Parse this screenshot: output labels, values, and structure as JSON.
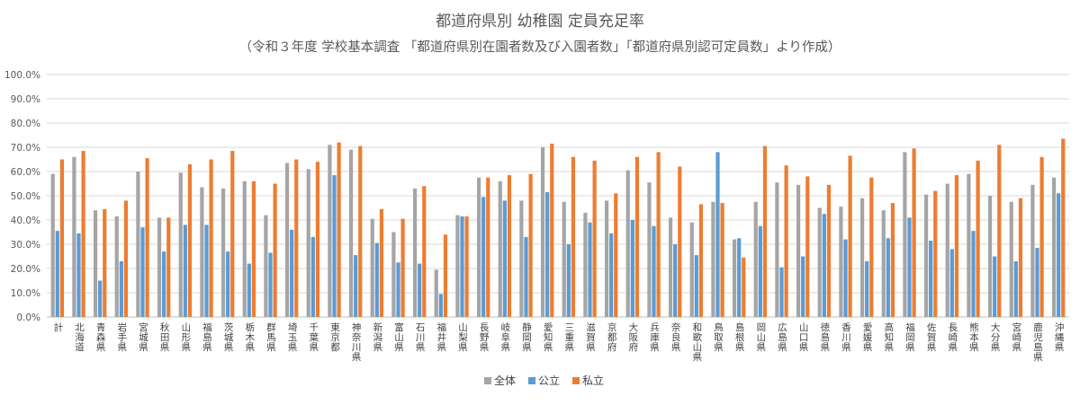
{
  "chart_data": {
    "type": "bar",
    "title": "都道府県別 幼稚園 定員充足率",
    "subtitle": "（令和３年度 学校基本調査 「都道府県別在園者数及び入園者数」「都道府県別認可定員数」より作成）",
    "xlabel": "",
    "ylabel": "",
    "ylim": [
      0,
      100
    ],
    "y_ticks": [
      "0.0%",
      "10.0%",
      "20.0%",
      "30.0%",
      "40.0%",
      "50.0%",
      "60.0%",
      "70.0%",
      "80.0%",
      "90.0%",
      "100.0%"
    ],
    "grid": true,
    "legend_position": "bottom",
    "categories": [
      "計",
      "北海道",
      "青森県",
      "岩手県",
      "宮城県",
      "秋田県",
      "山形県",
      "福島県",
      "茨城県",
      "栃木県",
      "群馬県",
      "埼玉県",
      "千葉県",
      "東京都",
      "神奈川県",
      "新潟県",
      "富山県",
      "石川県",
      "福井県",
      "山梨県",
      "長野県",
      "岐阜県",
      "静岡県",
      "愛知県",
      "三重県",
      "滋賀県",
      "京都府",
      "大阪府",
      "兵庫県",
      "奈良県",
      "和歌山県",
      "鳥取県",
      "島根県",
      "岡山県",
      "広島県",
      "山口県",
      "徳島県",
      "香川県",
      "愛媛県",
      "高知県",
      "福岡県",
      "佐賀県",
      "長崎県",
      "熊本県",
      "大分県",
      "宮崎県",
      "鹿児島県",
      "沖縄県"
    ],
    "series": [
      {
        "name": "全体",
        "color": "#a5a5a5",
        "values": [
          59.0,
          66.0,
          44.0,
          41.5,
          60.0,
          41.0,
          59.5,
          53.5,
          53.0,
          56.0,
          42.0,
          63.5,
          61.0,
          71.0,
          69.0,
          40.5,
          35.0,
          53.0,
          19.5,
          42.0,
          57.5,
          56.0,
          48.0,
          70.0,
          47.5,
          43.0,
          48.0,
          60.5,
          55.5,
          41.0,
          39.0,
          47.5,
          32.0,
          47.5,
          55.5,
          54.5,
          45.0,
          45.5,
          49.0,
          44.0,
          68.0,
          50.5,
          55.0,
          59.0,
          50.0,
          47.5,
          54.5,
          57.5
        ]
      },
      {
        "name": "公立",
        "color": "#5b9bd5",
        "values": [
          35.5,
          34.5,
          15.0,
          23.0,
          37.0,
          27.0,
          38.0,
          38.0,
          27.0,
          22.0,
          26.5,
          36.0,
          33.0,
          58.5,
          25.5,
          30.5,
          22.5,
          22.0,
          9.5,
          41.5,
          49.5,
          48.0,
          33.0,
          51.5,
          30.0,
          39.0,
          34.5,
          40.0,
          37.5,
          30.0,
          25.5,
          68.0,
          32.5,
          37.5,
          20.5,
          25.0,
          42.5,
          32.0,
          23.0,
          32.5,
          41.0,
          31.5,
          28.0,
          35.5,
          25.0,
          23.0,
          28.5,
          51.0
        ]
      },
      {
        "name": "私立",
        "color": "#ed7d31",
        "values": [
          65.0,
          68.5,
          44.5,
          48.0,
          65.5,
          41.0,
          63.0,
          65.0,
          68.5,
          56.0,
          55.0,
          65.0,
          64.0,
          72.0,
          70.5,
          44.5,
          40.5,
          54.0,
          34.0,
          41.5,
          57.5,
          58.5,
          59.0,
          71.5,
          66.0,
          64.5,
          51.0,
          66.0,
          68.0,
          62.0,
          46.5,
          47.0,
          24.5,
          70.5,
          62.5,
          58.0,
          54.5,
          66.5,
          57.5,
          47.0,
          69.5,
          52.0,
          58.5,
          64.5,
          71.0,
          49.0,
          66.0,
          73.5
        ]
      }
    ]
  }
}
